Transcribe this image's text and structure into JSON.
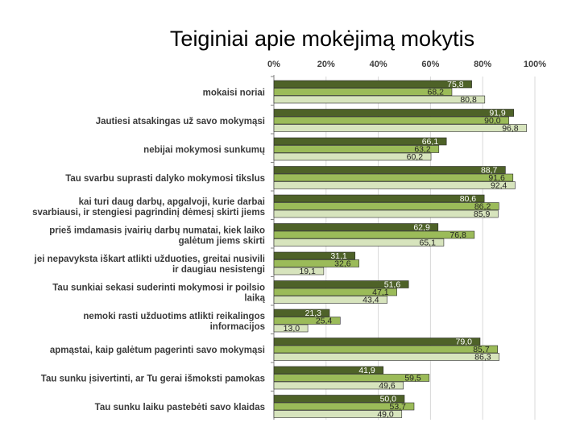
{
  "page_title": "Teiginiai apie mokėjimą mokytis",
  "chart_data": {
    "type": "bar",
    "orientation": "horizontal",
    "title": "Teiginiai apie mokėjimą mokytis",
    "xlim": [
      0,
      100
    ],
    "x_ticks": [
      "0%",
      "20%",
      "40%",
      "60%",
      "80%",
      "100%"
    ],
    "grid": true,
    "legend": "none",
    "colors": [
      "#4e6228",
      "#9bbb59",
      "#d7e4bd"
    ],
    "categories": [
      [
        "mokaisi noriai"
      ],
      [
        "Jautiesi atsakingas už savo mokymąsi"
      ],
      [
        "nebijai mokymosi sunkumų"
      ],
      [
        "Tau svarbu suprasti dalyko mokymosi tikslus"
      ],
      [
        "kai turi daug darbų, apgalvoji, kurie darbai",
        "svarbiausi, ir stengiesi pagrindinį dėmesį skirti jiems"
      ],
      [
        "prieš imdamasis įvairių darbų numatai, kiek laiko",
        "galėtum jiems skirti"
      ],
      [
        "jei nepavyksta iškart atlikti užduoties, greitai nusivili",
        "ir daugiau nesistengi"
      ],
      [
        "Tau sunkiai sekasi suderinti mokymosi ir poilsio",
        "laiką"
      ],
      [
        "nemoki rasti užduotims atlikti reikalingos",
        "informacijos"
      ],
      [
        "apmąstai, kaip galėtum pagerinti savo mokymąsi"
      ],
      [
        "Tau sunku įsivertinti, ar Tu gerai išmoksti pamokas"
      ],
      [
        "Tau sunku laiku pastebėti savo klaidas"
      ]
    ],
    "series": [
      {
        "values": [
          75.8,
          91.9,
          66.1,
          88.7,
          80.6,
          62.9,
          31.1,
          51.6,
          21.3,
          79.0,
          41.9,
          50.0
        ],
        "labels": [
          "75,8",
          "91,9",
          "66,1",
          "88,7",
          "80,6",
          "62,9",
          "31,1",
          "51,6",
          "21,3",
          "79,0",
          "41,9",
          "50,0"
        ]
      },
      {
        "values": [
          68.2,
          90.0,
          63.2,
          91.6,
          86.2,
          76.8,
          32.6,
          47.1,
          25.4,
          85.7,
          59.5,
          53.7
        ],
        "labels": [
          "68,2",
          "90,0",
          "63,2",
          "91,6",
          "86,2",
          "76,8",
          "32,6",
          "47,1",
          "25,4",
          "85,7",
          "59,5",
          "53,7"
        ]
      },
      {
        "values": [
          80.8,
          96.8,
          60.2,
          92.4,
          85.9,
          65.1,
          19.1,
          43.4,
          13.0,
          86.3,
          49.6,
          49.0
        ],
        "labels": [
          "80,8",
          "96,8",
          "60,2",
          "92,4",
          "85,9",
          "65,1",
          "19,1",
          "43,4",
          "13,0",
          "86,3",
          "49,6",
          "49,0"
        ]
      }
    ]
  }
}
